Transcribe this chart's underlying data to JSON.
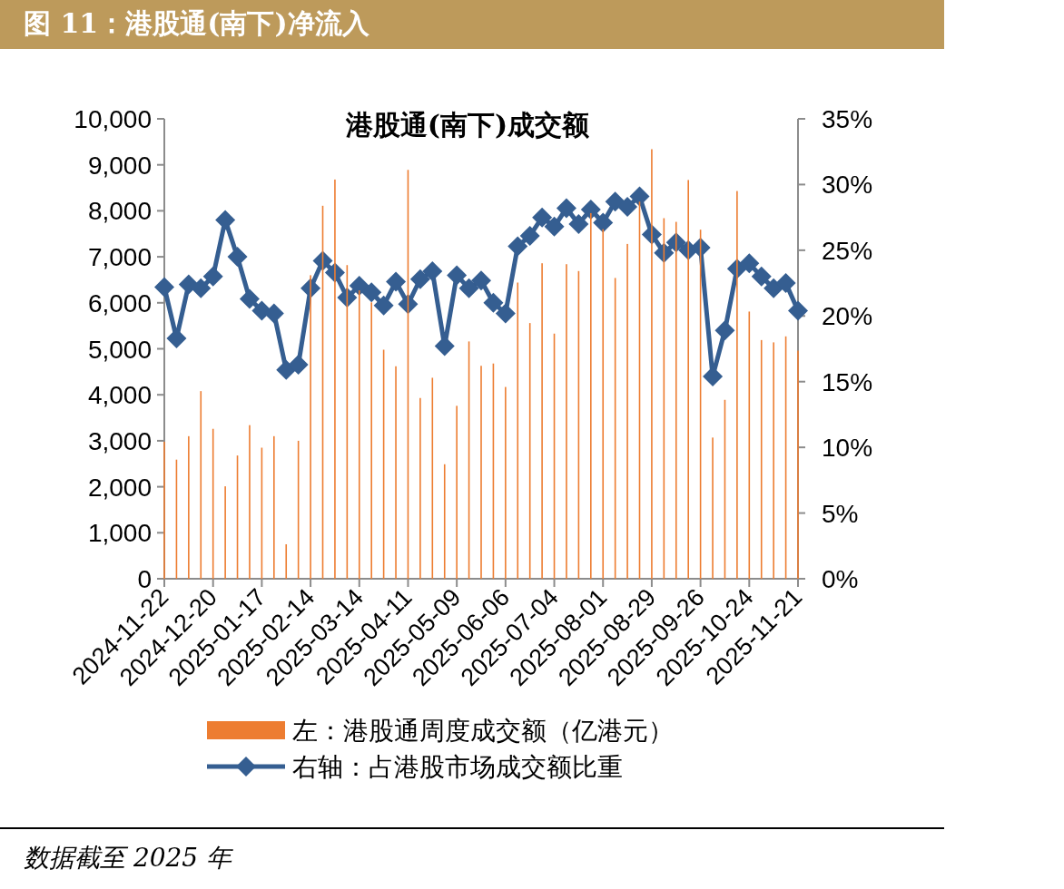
{
  "chart_data": {
    "type": "bar",
    "title": "图 11：港股通(南下)净流入",
    "subtitle": "港股通(南下)成交额",
    "categories": [
      "2024-11-22",
      null,
      null,
      null,
      "2024-12-20",
      null,
      null,
      null,
      "2025-01-17",
      null,
      null,
      null,
      "2025-02-14",
      null,
      null,
      null,
      "2025-03-14",
      null,
      null,
      null,
      "2025-04-11",
      null,
      null,
      null,
      "2025-05-09",
      null,
      null,
      null,
      "2025-06-06",
      null,
      null,
      null,
      "2025-07-04",
      null,
      null,
      null,
      "2025-08-01",
      null,
      null,
      null,
      "2025-08-29",
      null,
      null,
      null,
      "2025-09-26",
      null,
      null,
      null,
      "2025-10-24",
      null,
      null,
      null,
      "2025-11-21"
    ],
    "series": [
      {
        "name": "左：港股通周度成交额（亿港元）",
        "type": "bar",
        "color": "#ed7d31",
        "values": [
          2980,
          2590,
          3100,
          4080,
          3260,
          2010,
          2680,
          3340,
          2850,
          3100,
          750,
          3000,
          6600,
          8110,
          8680,
          6820,
          6270,
          6010,
          4980,
          4620,
          8890,
          3930,
          4370,
          2490,
          3760,
          5160,
          4630,
          4680,
          4170,
          6440,
          5560,
          6860,
          5330,
          6840,
          6690,
          7950,
          7600,
          6540,
          7280,
          8200,
          9340,
          7840,
          7760,
          8670,
          7590,
          3070,
          3890,
          8430,
          5810,
          5190,
          5140,
          5270,
          4960
        ]
      },
      {
        "name": "右轴：占港股市场成交额比重",
        "type": "line",
        "axis": "y2",
        "marker": "diamond",
        "color": "#355e91",
        "values": [
          22.2,
          18.3,
          22.4,
          22.1,
          23.0,
          27.3,
          24.5,
          21.3,
          20.4,
          20.2,
          15.9,
          16.3,
          22.1,
          24.2,
          23.3,
          21.4,
          22.3,
          21.8,
          20.8,
          22.6,
          20.9,
          22.8,
          23.4,
          17.7,
          23.1,
          22.1,
          22.7,
          21.0,
          20.2,
          25.3,
          26.1,
          27.5,
          26.8,
          28.2,
          27.0,
          28.1,
          27.1,
          28.7,
          28.3,
          29.1,
          26.2,
          24.8,
          25.6,
          25.0,
          25.2,
          15.4,
          18.9,
          23.6,
          24.0,
          23.0,
          22.1,
          22.5,
          20.4
        ]
      }
    ],
    "ylim": [
      0,
      10000
    ],
    "yticks": [
      0,
      {
        "value": 1000,
        "label": "1,000"
      },
      {
        "value": 2000,
        "label": "2,000"
      },
      {
        "value": 3000,
        "label": "3,000"
      },
      {
        "value": 4000,
        "label": "4,000"
      },
      {
        "value": 5000,
        "label": "5,000"
      },
      {
        "value": 6000,
        "label": "6,000"
      },
      {
        "value": 7000,
        "label": "7,000"
      },
      {
        "value": 8000,
        "label": "8,000"
      },
      {
        "value": 9000,
        "label": "9,000"
      },
      {
        "value": 10000,
        "label": "10,000"
      }
    ],
    "y2lim": [
      0,
      35
    ],
    "y2ticks": [
      {
        "value": 0,
        "label": "0%"
      },
      {
        "value": 5,
        "label": "5%"
      },
      {
        "value": 10,
        "label": "10%"
      },
      {
        "value": 15,
        "label": "15%"
      },
      {
        "value": 20,
        "label": "20%"
      },
      {
        "value": 25,
        "label": "25%"
      },
      {
        "value": 30,
        "label": "30%"
      },
      {
        "value": 35,
        "label": "35%"
      }
    ],
    "legend": "bottom",
    "annotations": [
      "数据截至 2025 年"
    ]
  }
}
